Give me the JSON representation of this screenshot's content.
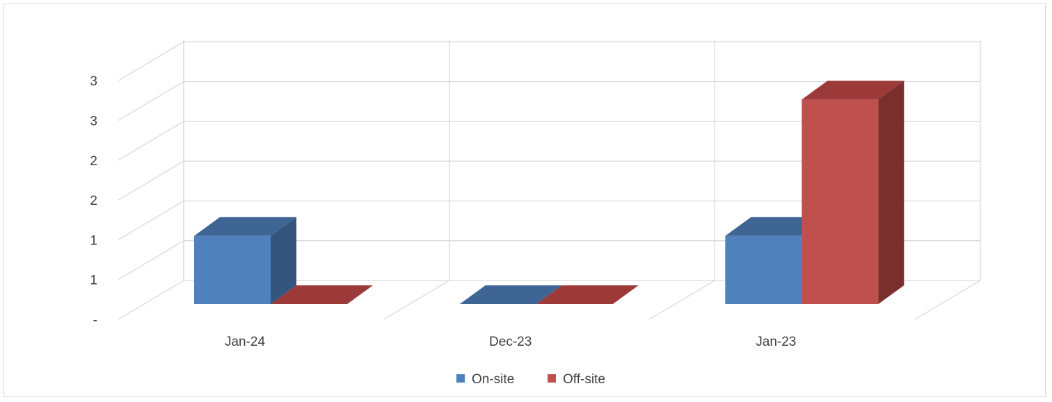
{
  "chart_data": {
    "type": "bar",
    "style": "3d-clustered-column",
    "categories": [
      "Jan-24",
      "Dec-23",
      "Jan-23"
    ],
    "series": [
      {
        "name": "On-site",
        "values": [
          1,
          0,
          1
        ],
        "color": "#4f81bd",
        "top_color": "#3f6595",
        "side_color": "#34557d"
      },
      {
        "name": "Off-site",
        "values": [
          0,
          0,
          3
        ],
        "color": "#c0504d",
        "top_color": "#9b3a38",
        "side_color": "#7b2f2d"
      }
    ],
    "y_tick_labels": [
      "-",
      "1",
      "1",
      "2",
      "2",
      "3",
      "3"
    ],
    "ylim": [
      0,
      3.5
    ],
    "grid": true,
    "legend": "bottom-center",
    "title": "",
    "xlabel": "",
    "ylabel": ""
  }
}
